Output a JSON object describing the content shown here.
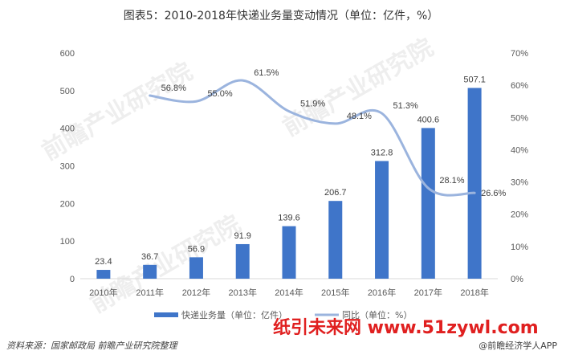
{
  "chart_data": {
    "type": "bar+line",
    "title": "图表5：2010-2018年快递业务量变动情况（单位：亿件，%）",
    "categories": [
      "2010年",
      "2011年",
      "2012年",
      "2013年",
      "2014年",
      "2015年",
      "2016年",
      "2017年",
      "2018年"
    ],
    "series": [
      {
        "name": "快递业务量（单位：亿件）",
        "type": "bar",
        "axis": "left",
        "color": "#3f75c9",
        "values": [
          23.4,
          36.7,
          56.9,
          91.9,
          139.6,
          206.7,
          312.8,
          400.6,
          507.1
        ],
        "labels": [
          "23.4",
          "36.7",
          "56.9",
          "91.9",
          "139.6",
          "206.7",
          "312.8",
          "400.6",
          "507.1"
        ]
      },
      {
        "name": "同比（单位：%）",
        "type": "line",
        "axis": "right",
        "color": "#9bb4de",
        "values": [
          null,
          56.8,
          55.0,
          61.5,
          51.9,
          48.1,
          51.3,
          28.1,
          26.6
        ],
        "labels": [
          "",
          "56.8%",
          "55.0%",
          "61.5%",
          "51.9%",
          "48.1%",
          "51.3%",
          "28.1%",
          "26.6%"
        ]
      }
    ],
    "y_left": {
      "min": 0,
      "max": 600,
      "ticks": [
        "0",
        "100",
        "200",
        "300",
        "400",
        "500",
        "600"
      ]
    },
    "y_right": {
      "min": 0,
      "max": 70,
      "ticks": [
        "0%",
        "10%",
        "20%",
        "30%",
        "40%",
        "50%",
        "60%",
        "70%"
      ]
    },
    "grid": false,
    "legend": "bottom"
  },
  "footer": {
    "source": "资料来源：国家邮政局 前瞻产业研究院整理",
    "brand": "@前瞻经济学人APP"
  },
  "watermark": {
    "text": "纸引未来网 www.51zywl.com",
    "faint": "前瞻产业研究院"
  }
}
